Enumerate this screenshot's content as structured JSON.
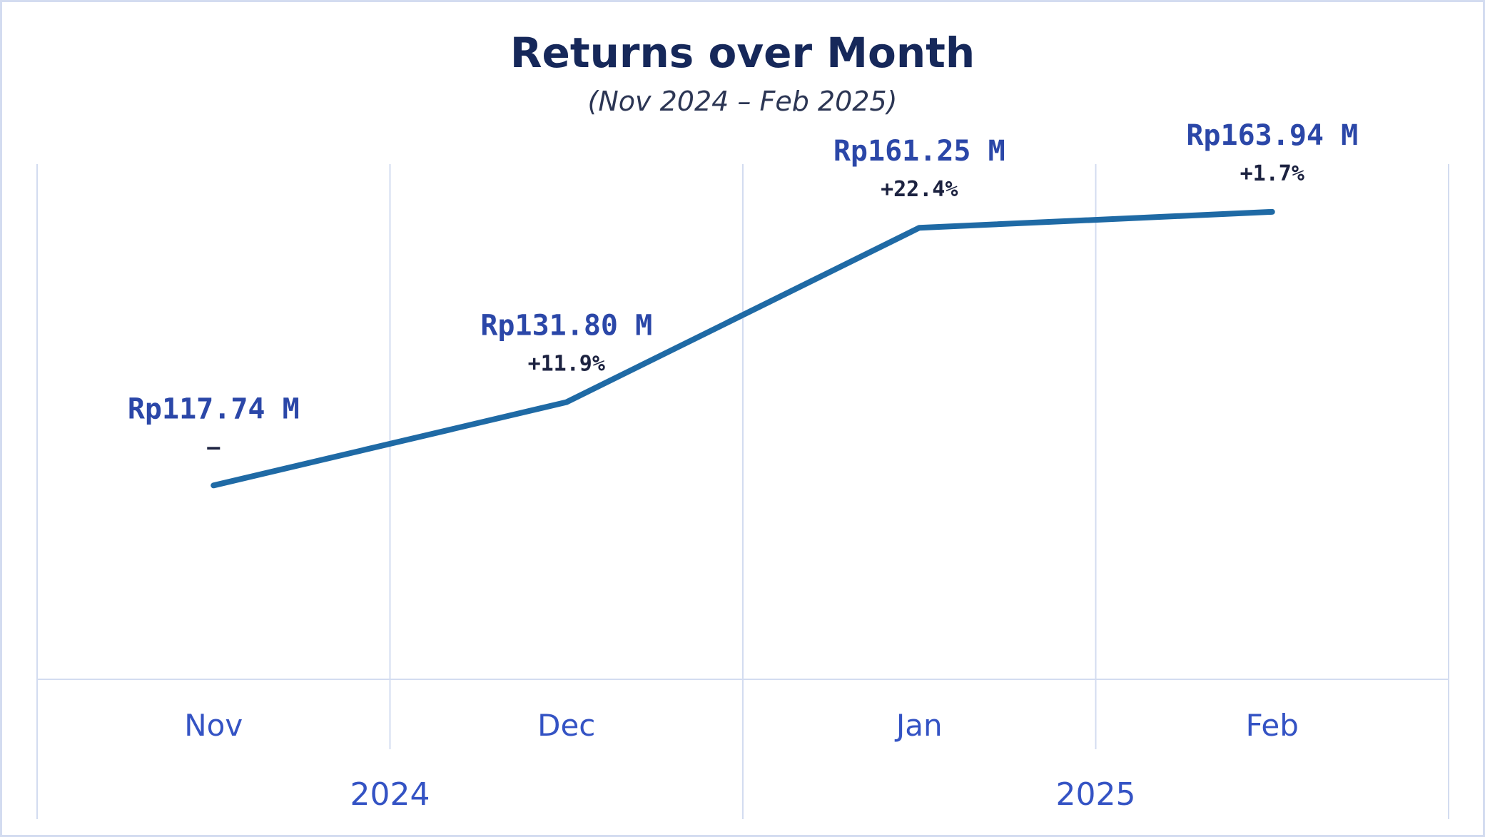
{
  "chart_data": {
    "type": "line",
    "title": "Returns over Month",
    "subtitle": "(Nov 2024 – Feb 2025)",
    "categories": [
      "Nov",
      "Dec",
      "Jan",
      "Feb"
    ],
    "groups": [
      {
        "label": "2024",
        "categories": [
          "Nov",
          "Dec"
        ]
      },
      {
        "label": "2025",
        "categories": [
          "Jan",
          "Feb"
        ]
      }
    ],
    "series": [
      {
        "values": [
          117.74,
          131.8,
          161.25,
          163.94
        ],
        "value_labels": [
          "Rp117.74 M",
          "Rp131.80 M",
          "Rp161.25 M",
          "Rp163.94 M"
        ],
        "change_labels": [
          "–",
          "+11.9%",
          "+22.4%",
          "+1.7%"
        ],
        "color": "#1f6aa5"
      }
    ],
    "ylim": [
      85,
      172
    ],
    "grid": true,
    "legend": "none"
  },
  "colors": {
    "line": "#1f6aa5",
    "grid": "#d3dcf0",
    "title": "#16285a",
    "value_label": "#2b47a8",
    "axis_label": "#3453c4"
  }
}
